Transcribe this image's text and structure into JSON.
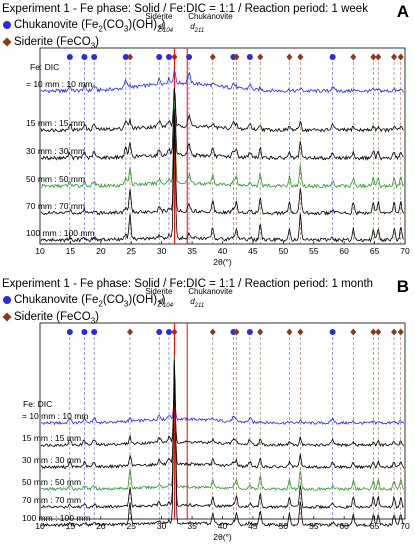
{
  "colors": {
    "chukanovite": "#2a2ae6",
    "siderite": "#8b3a1a",
    "ref_line": "#ff0000",
    "series": [
      "#2a2ae6",
      "#000000",
      "#000000",
      "#2a9a2a",
      "#000000",
      "#000000"
    ]
  },
  "chart_data": [
    {
      "type": "line",
      "panel": "A",
      "title": "Experiment 1 - Fe phase: Solid / Fe:DIC = 1:1 / Reaction period: 1 week",
      "legend": {
        "chukanovite": "Chukanovite (Fe2(CO3)(OH)2)",
        "siderite": "Siderite (FeCO3)"
      },
      "annotations": {
        "siderite_label": "Siderite",
        "siderite_plane": "d104",
        "chukanovite_label": "Chukanovite",
        "chukanovite_plane": "d211"
      },
      "series_header": "Fe: DIC",
      "series": [
        {
          "name": "= 10 mm : 10 mm"
        },
        {
          "name": "15 mm : 15 mm"
        },
        {
          "name": "30 mm : 30 mm"
        },
        {
          "name": "50 mm : 50 mm"
        },
        {
          "name": "70 mm : 70 mm"
        },
        {
          "name": "100 mm : 100 mm"
        }
      ],
      "xlabel": "2θ(°)",
      "xlim": [
        10,
        70
      ],
      "xticks": [
        10,
        15,
        20,
        25,
        30,
        35,
        40,
        45,
        50,
        55,
        60,
        65,
        70
      ],
      "reference_lines": {
        "siderite_d104": 32.1,
        "chukanovite_d211": 34.2
      },
      "chukanovite_peaks": [
        14.9,
        17.3,
        18.9,
        24.1,
        29.6,
        31.2,
        34.5,
        41.8,
        44.5,
        58.1
      ],
      "siderite_peaks": [
        24.8,
        32.1,
        38.4,
        42.3,
        46.2,
        51.0,
        52.8,
        61.5,
        64.8,
        65.6,
        68.2,
        69.3
      ]
    },
    {
      "type": "line",
      "panel": "B",
      "title": "Experiment 1 - Fe phase: Solid / Fe:DIC = 1:1 / Reaction period: 1 month",
      "legend": {
        "chukanovite": "Chukanovite (Fe2(CO3)(OH)2)",
        "siderite": "Siderite (FeCO3)"
      },
      "annotations": {
        "siderite_label": "Siderite",
        "siderite_plane": "d104",
        "chukanovite_label": "Chukanovite",
        "chukanovite_plane": "d211"
      },
      "series_header": "Fe: DIC",
      "series": [
        {
          "name": "= 10 mm : 10 mm"
        },
        {
          "name": "15 mm : 15 mm"
        },
        {
          "name": "30 mm : 30 mm"
        },
        {
          "name": "50 mm : 50 mm"
        },
        {
          "name": "70 mm : 70 mm"
        },
        {
          "name": "100 mm : 100 mm"
        }
      ],
      "xlabel": "2θ(°)",
      "xlim": [
        10,
        70
      ],
      "xticks": [
        10,
        15,
        20,
        25,
        30,
        35,
        40,
        45,
        50,
        55,
        60,
        65,
        70
      ],
      "reference_lines": {
        "siderite_d104": 32.1,
        "chukanovite_d211": 34.2
      },
      "chukanovite_peaks": [
        14.9,
        17.3,
        18.9,
        29.6,
        31.2,
        41.8,
        44.5,
        58.1
      ],
      "siderite_peaks": [
        24.8,
        32.1,
        38.4,
        42.3,
        46.2,
        51.0,
        52.8,
        61.5,
        64.8,
        65.6,
        68.2,
        69.3
      ]
    }
  ]
}
